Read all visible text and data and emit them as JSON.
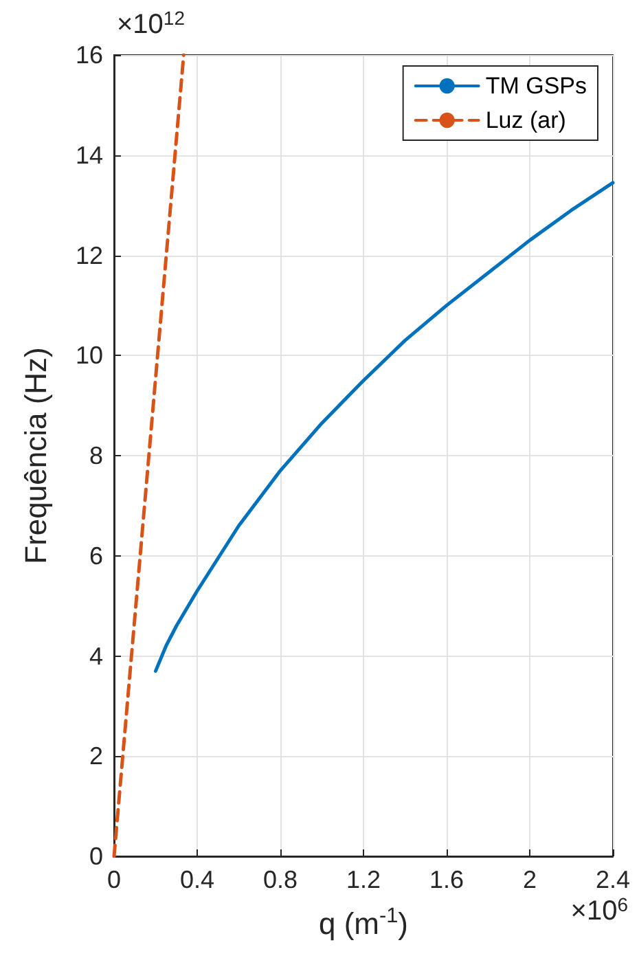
{
  "chart_data": {
    "type": "line",
    "xlabel": "q (m$^{-1}$)",
    "ylabel": "Frequência (Hz)",
    "xlim": [
      0,
      2.4
    ],
    "ylim": [
      0,
      16
    ],
    "xticks": [
      0,
      0.4,
      0.8,
      1.2,
      1.6,
      2,
      2.4
    ],
    "yticks": [
      0,
      2,
      4,
      6,
      8,
      10,
      12,
      14,
      16
    ],
    "annotations": [
      "×10$^{12}$",
      "×10$^{6}$"
    ],
    "grid": true,
    "legend": "top right",
    "marker": "none",
    "series": [
      {
        "name": "TM GSPs",
        "color": "#0072bd",
        "line_style": "solid",
        "x": [
          0.2,
          0.25,
          0.3,
          0.4,
          0.6,
          0.8,
          1.0,
          1.2,
          1.4,
          1.6,
          1.8,
          2.0,
          2.2,
          2.4
        ],
        "values": [
          3.7,
          4.2,
          4.6,
          5.3,
          6.6,
          7.7,
          8.65,
          9.5,
          10.3,
          11.0,
          11.65,
          12.3,
          12.9,
          13.45
        ]
      },
      {
        "name": "Luz (ar)",
        "color": "#d95319",
        "line_style": "dashed",
        "x": [
          0,
          0.335
        ],
        "values": [
          0,
          16
        ]
      }
    ]
  }
}
